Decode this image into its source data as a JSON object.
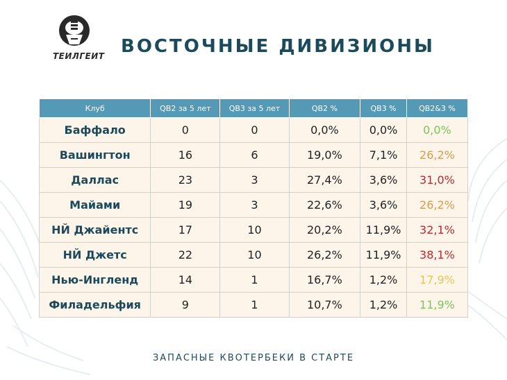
{
  "logo": {
    "text": "ТЕИЛГЕИТ"
  },
  "title": "ВОСТОЧНЫЕ ДИВИЗИОНЫ",
  "table": {
    "headers": [
      "Клуб",
      "QB2 за 5 лет",
      "QB3 за 5 лет",
      "QB2 %",
      "QB3 %",
      "QB2&3 %"
    ],
    "rows": [
      {
        "club": "Баффало",
        "qb2": "0",
        "qb3": "0",
        "qb2_pct": "0,0%",
        "qb3_pct": "0,0%",
        "total_pct": "0,0%",
        "total_color": "green"
      },
      {
        "club": "Вашингтон",
        "qb2": "16",
        "qb3": "6",
        "qb2_pct": "19,0%",
        "qb3_pct": "7,1%",
        "total_pct": "26,2%",
        "total_color": "orange"
      },
      {
        "club": "Даллас",
        "qb2": "23",
        "qb3": "3",
        "qb2_pct": "27,4%",
        "qb3_pct": "3,6%",
        "total_pct": "31,0%",
        "total_color": "red"
      },
      {
        "club": "Майами",
        "qb2": "19",
        "qb3": "3",
        "qb2_pct": "22,6%",
        "qb3_pct": "3,6%",
        "total_pct": "26,2%",
        "total_color": "orange"
      },
      {
        "club": "НЙ Джайентс",
        "qb2": "17",
        "qb3": "10",
        "qb2_pct": "20,2%",
        "qb3_pct": "11,9%",
        "total_pct": "32,1%",
        "total_color": "red"
      },
      {
        "club": "НЙ Джетс",
        "qb2": "22",
        "qb3": "10",
        "qb2_pct": "26,2%",
        "qb3_pct": "11,9%",
        "total_pct": "38,1%",
        "total_color": "red"
      },
      {
        "club": "Нью-Ингленд",
        "qb2": "14",
        "qb3": "1",
        "qb2_pct": "16,7%",
        "qb3_pct": "1,2%",
        "total_pct": "17,9%",
        "total_color": "yellow"
      },
      {
        "club": "Филадельфия",
        "qb2": "9",
        "qb3": "1",
        "qb2_pct": "10,7%",
        "qb3_pct": "1,2%",
        "total_pct": "11,9%",
        "total_color": "green"
      }
    ]
  },
  "footer": "ЗАПАСНЫЕ КВОТЕРБЕКИ В СТАРТЕ",
  "colors": {
    "header_bg": "#5499b5",
    "title": "#1d4a5a",
    "row_bg": "#fdf5ea",
    "green": "#7cc35a",
    "orange": "#dd9a4e",
    "red": "#c2272d",
    "yellow": "#e8c452"
  }
}
